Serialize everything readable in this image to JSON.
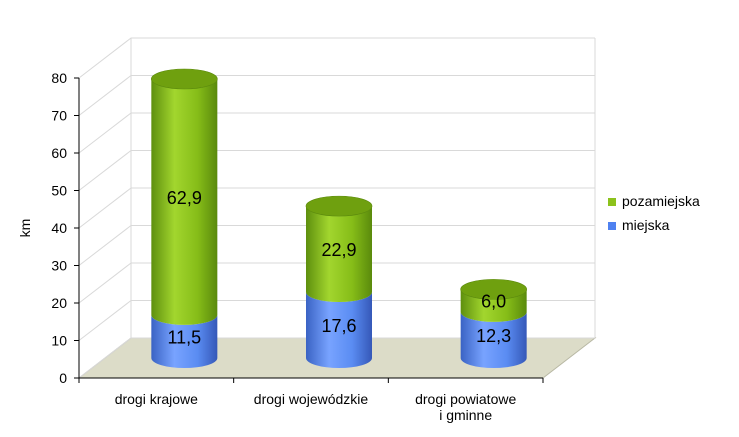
{
  "chart_data": {
    "type": "bar",
    "stacked": true,
    "style": "3d-cylinder",
    "categories": [
      [
        "drogi krajowe"
      ],
      [
        "drogi wojewódzkie"
      ],
      [
        "drogi powiatowe",
        "i gminne"
      ]
    ],
    "series": [
      {
        "name": "miejska",
        "values": [
          11.5,
          17.6,
          12.3
        ],
        "labels": [
          "11,5",
          "17,6",
          "12,3"
        ]
      },
      {
        "name": "pozamiejska",
        "values": [
          62.9,
          22.9,
          6.0
        ],
        "labels": [
          "62,9",
          "22,9",
          "6,0"
        ]
      }
    ],
    "ylabel": "km",
    "ylim": [
      0,
      80
    ],
    "yticks": [
      0,
      10,
      20,
      30,
      40,
      50,
      60,
      70,
      80
    ],
    "grid": true,
    "legend_position": "right",
    "legend_order": [
      "pozamiejska",
      "miejska"
    ],
    "colors": {
      "miejska": "#4f81f0",
      "pozamiejska": "#8cc21c",
      "floor": "#dcdcc8",
      "grid": "#d9d9d9"
    }
  }
}
